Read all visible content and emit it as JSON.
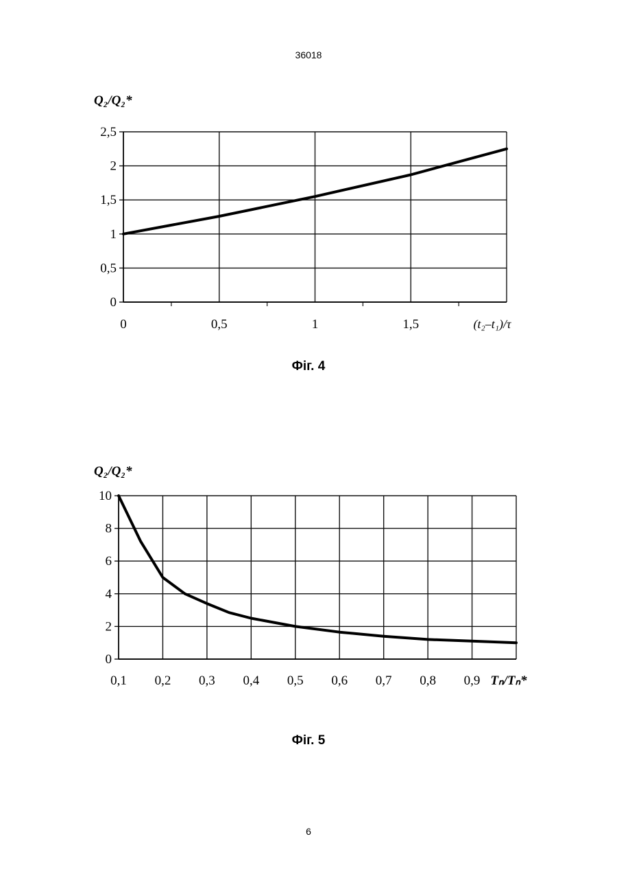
{
  "header": {
    "doc_number": "36018"
  },
  "footer": {
    "page_number": "6"
  },
  "figures": [
    {
      "caption": "Фіг. 4"
    },
    {
      "caption": "Фіг. 5"
    }
  ],
  "chart_data": [
    {
      "type": "line",
      "ylabel": "Q₂/Q₂*",
      "xlabel": "(t₂–t₁)/τ",
      "xlim": [
        0,
        2
      ],
      "ylim": [
        0,
        2.5
      ],
      "xticks": [
        0,
        0.5,
        1,
        1.5
      ],
      "xtick_labels": [
        "0",
        "0,5",
        "1",
        "1,5"
      ],
      "yticks": [
        0,
        0.5,
        1,
        1.5,
        2,
        2.5
      ],
      "ytick_labels": [
        "0",
        "0,5",
        "1",
        "1,5",
        "2",
        "2,5"
      ],
      "grid": true,
      "series": [
        {
          "x": [
            0,
            0.5,
            1,
            1.5,
            2
          ],
          "values": [
            1.0,
            1.26,
            1.55,
            1.87,
            2.25
          ]
        }
      ]
    },
    {
      "type": "line",
      "ylabel": "Q₂/Q₂*",
      "xlabel": "Tₙ/Tₙ*",
      "xlim": [
        0.1,
        1.0
      ],
      "ylim": [
        0,
        10
      ],
      "xticks": [
        0.1,
        0.2,
        0.3,
        0.4,
        0.5,
        0.6,
        0.7,
        0.8,
        0.9
      ],
      "xtick_labels": [
        "0,1",
        "0,2",
        "0,3",
        "0,4",
        "0,5",
        "0,6",
        "0,7",
        "0,8",
        "0,9"
      ],
      "yticks": [
        0,
        2,
        4,
        6,
        8,
        10
      ],
      "ytick_labels": [
        "0",
        "2",
        "4",
        "6",
        "8",
        "10"
      ],
      "grid": true,
      "series": [
        {
          "x": [
            0.1,
            0.15,
            0.2,
            0.25,
            0.3,
            0.35,
            0.4,
            0.5,
            0.6,
            0.7,
            0.8,
            0.9,
            1.0
          ],
          "values": [
            10,
            7.2,
            5.0,
            4.0,
            3.4,
            2.85,
            2.5,
            2.0,
            1.65,
            1.4,
            1.2,
            1.1,
            1.0
          ]
        }
      ]
    }
  ]
}
